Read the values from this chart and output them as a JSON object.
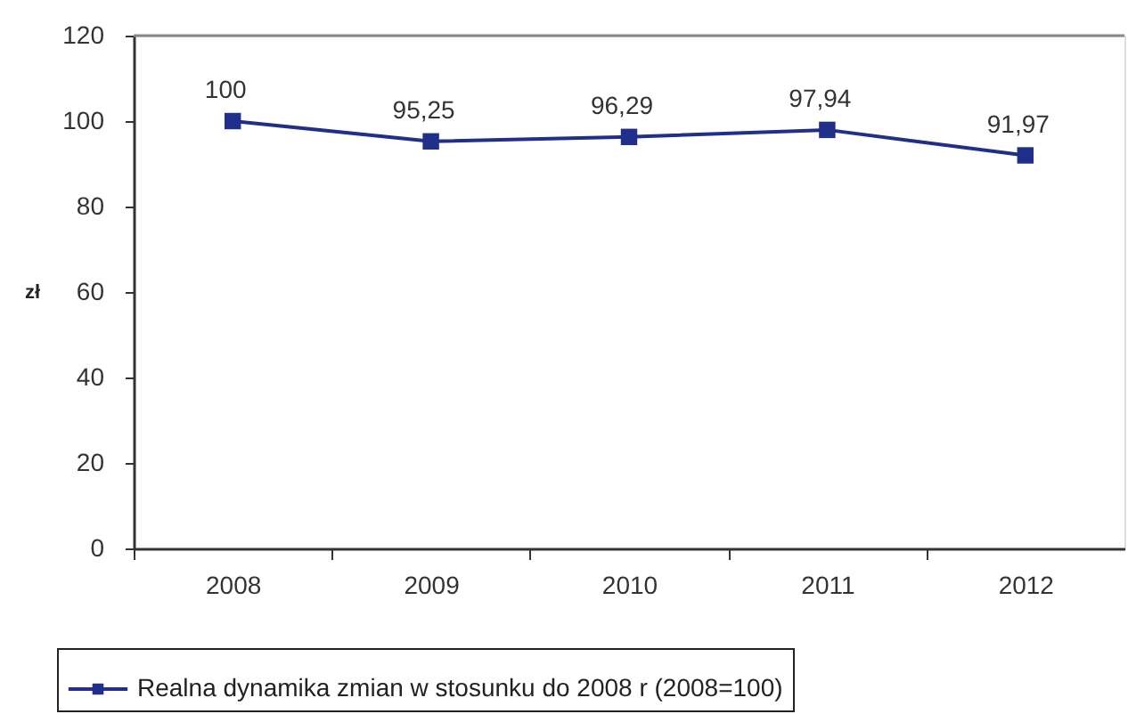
{
  "chart_data": {
    "type": "line",
    "ylabel": "zł",
    "categories": [
      "2008",
      "2009",
      "2010",
      "2011",
      "2012"
    ],
    "series": [
      {
        "name": "Realna dynamika zmian w stosunku do 2008 r (2008=100)",
        "color": "#1f2f8a",
        "values": [
          100,
          95.25,
          96.29,
          97.94,
          91.97
        ],
        "value_labels": [
          "100",
          "95,25",
          "96,29",
          "97,94",
          "91,97"
        ]
      }
    ],
    "ylim": [
      0,
      120
    ],
    "yticks": [
      0,
      20,
      40,
      60,
      80,
      100,
      120
    ],
    "marker": "square",
    "legend": "bottom"
  }
}
